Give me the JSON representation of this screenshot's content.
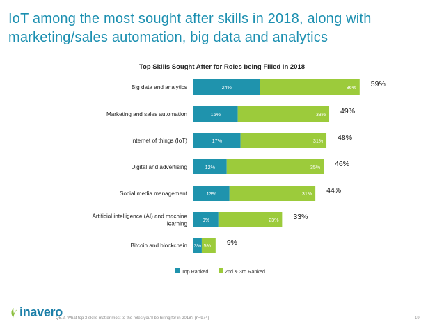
{
  "slide": {
    "title_line1": "IoT among the most sought after skills in 2018, along with",
    "title_line2": "marketing/sales automation, big data and analytics"
  },
  "chart_data": {
    "type": "bar",
    "orientation": "horizontal-stacked",
    "title": "Top Skills Sought After for Roles being Filled in 2018",
    "categories": [
      [
        "Big data and analytics"
      ],
      [
        "Marketing and sales automation"
      ],
      [
        "Internet of things (IoT)"
      ],
      [
        "Digital and advertising"
      ],
      [
        "Social media management"
      ],
      [
        "Artificial intelligence (AI) and machine",
        "learning"
      ],
      [
        "Bitcoin and blockchain"
      ]
    ],
    "series": [
      {
        "name": "Top Ranked",
        "color": "#1f93ad",
        "values": [
          24,
          16,
          17,
          12,
          13,
          9,
          3
        ]
      },
      {
        "name": "2nd & 3rd Ranked",
        "color": "#9ccb3b",
        "values": [
          36,
          33,
          31,
          35,
          31,
          23,
          5
        ]
      }
    ],
    "totals": [
      59,
      49,
      48,
      46,
      44,
      33,
      9
    ],
    "value_suffix": "%",
    "xlim": [
      0,
      60
    ],
    "legend": "bottom"
  },
  "footer": {
    "logo": "inavero",
    "footnote": "Q5.2. What top 3 skills matter most to the roles you'll be hiring for in 2018? (n=974)",
    "page": "19"
  }
}
